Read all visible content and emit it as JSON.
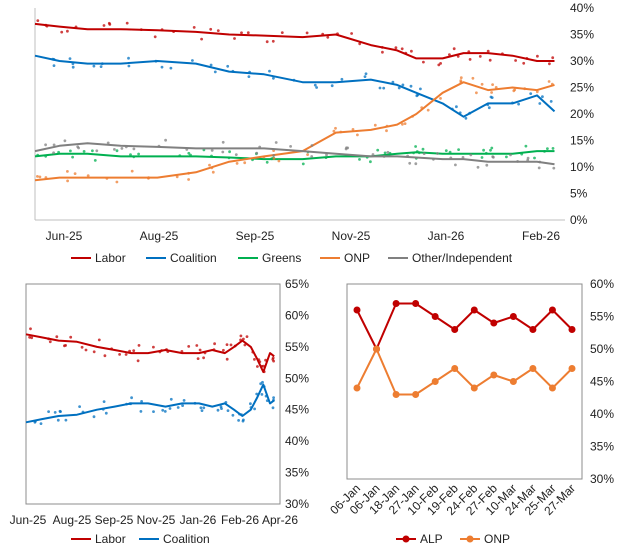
{
  "chart_data": [
    {
      "type": "line",
      "title": "",
      "x_ticks": [
        "Jun-25",
        "Aug-25",
        "Sep-25",
        "Nov-25",
        "Jan-26",
        "Feb-26"
      ],
      "x_range": [
        "2025-06-01",
        "2026-03-31"
      ],
      "ylim": [
        0,
        40
      ],
      "y_ticks": [
        "0%",
        "5%",
        "10%",
        "15%",
        "20%",
        "25%",
        "30%",
        "35%",
        "40%"
      ],
      "y_axis_side": "right",
      "legend_position": "bottom",
      "series": [
        {
          "name": "Labor",
          "color": "#c00000",
          "x": [
            "2025-06-01",
            "2025-06-15",
            "2025-07-01",
            "2025-07-20",
            "2025-08-10",
            "2025-09-01",
            "2025-09-20",
            "2025-10-10",
            "2025-11-01",
            "2025-11-20",
            "2025-12-10",
            "2025-12-25",
            "2026-01-05",
            "2026-01-20",
            "2026-02-01",
            "2026-02-15",
            "2026-03-01",
            "2026-03-15",
            "2026-03-25"
          ],
          "values": [
            37,
            36.5,
            36,
            36,
            35.8,
            35.5,
            35,
            34.8,
            34.5,
            35,
            33,
            32,
            30.5,
            30.5,
            31.5,
            31.5,
            31,
            30,
            30
          ]
        },
        {
          "name": "Coalition",
          "color": "#0070c0",
          "x": [
            "2025-06-01",
            "2025-06-15",
            "2025-07-01",
            "2025-07-20",
            "2025-08-10",
            "2025-09-01",
            "2025-09-20",
            "2025-10-10",
            "2025-11-01",
            "2025-11-20",
            "2025-12-10",
            "2025-12-25",
            "2026-01-05",
            "2026-01-20",
            "2026-02-01",
            "2026-02-15",
            "2026-03-01",
            "2026-03-15",
            "2026-03-25"
          ],
          "values": [
            31,
            30,
            29.5,
            29.5,
            30,
            29.5,
            28,
            27.5,
            26,
            26,
            26.5,
            25.5,
            24,
            22,
            19.5,
            22,
            22,
            23.5,
            20.5
          ]
        },
        {
          "name": "Greens",
          "color": "#00b050",
          "x": [
            "2025-06-01",
            "2025-06-15",
            "2025-07-01",
            "2025-07-20",
            "2025-08-10",
            "2025-09-01",
            "2025-09-20",
            "2025-10-10",
            "2025-11-01",
            "2025-11-20",
            "2025-12-10",
            "2025-12-25",
            "2026-01-05",
            "2026-01-20",
            "2026-02-01",
            "2026-02-15",
            "2026-03-01",
            "2026-03-15",
            "2026-03-25"
          ],
          "values": [
            12,
            12.5,
            12.5,
            12,
            12,
            12,
            11.8,
            11.5,
            11.5,
            12,
            12,
            12.5,
            12.8,
            12.5,
            12.5,
            12.5,
            12.5,
            13,
            13
          ]
        },
        {
          "name": "ONP",
          "color": "#ed7d31",
          "x": [
            "2025-06-01",
            "2025-06-15",
            "2025-07-01",
            "2025-07-20",
            "2025-08-10",
            "2025-09-01",
            "2025-09-20",
            "2025-10-10",
            "2025-11-01",
            "2025-11-20",
            "2025-12-10",
            "2025-12-25",
            "2026-01-05",
            "2026-01-20",
            "2026-02-01",
            "2026-02-15",
            "2026-03-01",
            "2026-03-15",
            "2026-03-25"
          ],
          "values": [
            7.5,
            8,
            8,
            8,
            8,
            9,
            11,
            12,
            13,
            16.5,
            17,
            18,
            20,
            24,
            26,
            24.5,
            25,
            24.5,
            25.5
          ]
        },
        {
          "name": "Other/Independent",
          "color": "#808080",
          "x": [
            "2025-06-01",
            "2025-06-15",
            "2025-07-01",
            "2025-07-20",
            "2025-08-10",
            "2025-09-01",
            "2025-09-20",
            "2025-10-10",
            "2025-11-01",
            "2025-11-20",
            "2025-12-10",
            "2025-12-25",
            "2026-01-05",
            "2026-01-20",
            "2026-02-01",
            "2026-02-15",
            "2026-03-01",
            "2026-03-15",
            "2026-03-25"
          ],
          "values": [
            13,
            14,
            14.5,
            14,
            13.8,
            13.5,
            13.5,
            13.5,
            13,
            12.5,
            12,
            12,
            11.8,
            11.5,
            11.5,
            11,
            11,
            11,
            10.5
          ]
        }
      ]
    },
    {
      "type": "line",
      "title": "",
      "x_ticks": [
        "Jun-25",
        "Aug-25",
        "Sep-25",
        "Nov-25",
        "Jan-26",
        "Feb-26",
        "Apr-26"
      ],
      "x_range": [
        "2025-06-01",
        "2026-04-01"
      ],
      "ylim": [
        30,
        65
      ],
      "y_ticks": [
        "30%",
        "35%",
        "40%",
        "45%",
        "50%",
        "55%",
        "60%",
        "65%"
      ],
      "y_axis_side": "right",
      "legend_position": "bottom",
      "series": [
        {
          "name": "Labor",
          "color": "#c00000",
          "x": [
            "2025-06-01",
            "2025-06-20",
            "2025-07-10",
            "2025-08-01",
            "2025-08-25",
            "2025-09-15",
            "2025-10-05",
            "2025-10-25",
            "2025-11-15",
            "2025-12-05",
            "2025-12-25",
            "2026-01-10",
            "2026-01-25",
            "2026-02-05",
            "2026-02-15",
            "2026-02-25",
            "2026-03-05",
            "2026-03-12",
            "2026-03-20",
            "2026-03-25"
          ],
          "values": [
            57,
            56.5,
            56,
            55.8,
            55,
            54.5,
            54,
            54,
            54.5,
            54,
            54,
            54.5,
            54,
            55,
            56,
            55,
            53,
            51,
            54,
            53.5
          ]
        },
        {
          "name": "Coalition",
          "color": "#0070c0",
          "x": [
            "2025-06-01",
            "2025-06-20",
            "2025-07-10",
            "2025-08-01",
            "2025-08-25",
            "2025-09-15",
            "2025-10-05",
            "2025-10-25",
            "2025-11-15",
            "2025-12-05",
            "2025-12-25",
            "2026-01-10",
            "2026-01-25",
            "2026-02-05",
            "2026-02-15",
            "2026-02-25",
            "2026-03-05",
            "2026-03-12",
            "2026-03-20",
            "2026-03-25"
          ],
          "values": [
            43,
            43.5,
            44,
            44.2,
            45,
            45.5,
            46,
            46,
            45.5,
            46,
            46,
            45.5,
            46,
            45,
            44,
            45,
            47,
            49,
            46,
            46.5
          ]
        }
      ]
    },
    {
      "type": "line",
      "title": "",
      "categories": [
        "06-Jan",
        "06-Jan",
        "18-Jan",
        "27-Jan",
        "10-Feb",
        "19-Feb",
        "24-Feb",
        "27-Feb",
        "10-Mar",
        "24-Mar",
        "25-Mar",
        "27-Mar"
      ],
      "ylim": [
        30,
        60
      ],
      "y_ticks": [
        "30%",
        "35%",
        "40%",
        "45%",
        "50%",
        "55%",
        "60%"
      ],
      "y_axis_side": "right",
      "legend_position": "bottom",
      "series": [
        {
          "name": "ALP",
          "color": "#c00000",
          "values": [
            56,
            50,
            57,
            57,
            55,
            53,
            56,
            54,
            55,
            53,
            56,
            53
          ]
        },
        {
          "name": "ONP",
          "color": "#ed7d31",
          "values": [
            44,
            50,
            43,
            43,
            45,
            47,
            44,
            46,
            45,
            47,
            44,
            47
          ]
        }
      ]
    }
  ]
}
